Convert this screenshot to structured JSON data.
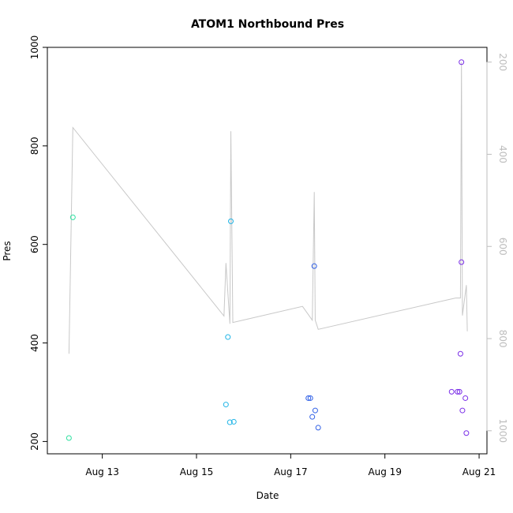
{
  "chart_data": {
    "type": "scatter",
    "title": "ATOM1 Northbound Pres",
    "xlabel": "Date",
    "ylabel": "Pres",
    "x_type": "date",
    "xlim": [
      "2023-08-11T20:00",
      "2023-08-21T04:00"
    ],
    "x_ticks": [
      {
        "label": "Aug 13",
        "value": "2023-08-13T00:00"
      },
      {
        "label": "Aug 15",
        "value": "2023-08-15T00:00"
      },
      {
        "label": "Aug 17",
        "value": "2023-08-17T00:00"
      },
      {
        "label": "Aug 19",
        "value": "2023-08-19T00:00"
      },
      {
        "label": "Aug 21",
        "value": "2023-08-21T00:00"
      }
    ],
    "ylim": [
      175,
      1000
    ],
    "y_ticks": [
      200,
      400,
      600,
      800,
      1000
    ],
    "y2_reversed": true,
    "y2lim": [
      1050,
      168
    ],
    "y2_ticks": [
      200,
      400,
      600,
      800,
      1000
    ],
    "grid": false,
    "line_color": "#c8c8c8",
    "right_axis_color": "#bdbdbd",
    "points": [
      {
        "x": "2023-08-12T07:00",
        "y": 207,
        "color": "#2fe0a0"
      },
      {
        "x": "2023-08-12T09:00",
        "y": 655,
        "color": "#2fe0a0"
      },
      {
        "x": "2023-08-15T15:00",
        "y": 275,
        "color": "#1eb4e6"
      },
      {
        "x": "2023-08-15T16:00",
        "y": 412,
        "color": "#1eb4e6"
      },
      {
        "x": "2023-08-15T17:00",
        "y": 239,
        "color": "#1eb4e6"
      },
      {
        "x": "2023-08-15T17:30",
        "y": 647,
        "color": "#1eb4e6"
      },
      {
        "x": "2023-08-15T19:00",
        "y": 240,
        "color": "#1eb4e6"
      },
      {
        "x": "2023-08-17T09:00",
        "y": 288,
        "color": "#2f5fe6"
      },
      {
        "x": "2023-08-17T10:00",
        "y": 288,
        "color": "#2f5fe6"
      },
      {
        "x": "2023-08-17T11:00",
        "y": 250,
        "color": "#2f5fe6"
      },
      {
        "x": "2023-08-17T12:00",
        "y": 556,
        "color": "#2f5fe6"
      },
      {
        "x": "2023-08-17T12:30",
        "y": 263,
        "color": "#2f5fe6"
      },
      {
        "x": "2023-08-17T14:00",
        "y": 228,
        "color": "#2f5fe6"
      },
      {
        "x": "2023-08-20T10:00",
        "y": 301,
        "color": "#7b2fe8"
      },
      {
        "x": "2023-08-20T13:00",
        "y": 301,
        "color": "#7b2fe8"
      },
      {
        "x": "2023-08-20T14:00",
        "y": 301,
        "color": "#7b2fe8"
      },
      {
        "x": "2023-08-20T14:30",
        "y": 378,
        "color": "#7b2fe8"
      },
      {
        "x": "2023-08-20T15:00",
        "y": 970,
        "color": "#7b2fe8"
      },
      {
        "x": "2023-08-20T15:00",
        "y": 564,
        "color": "#7b2fe8"
      },
      {
        "x": "2023-08-20T15:30",
        "y": 263,
        "color": "#7b2fe8"
      },
      {
        "x": "2023-08-20T17:00",
        "y": 288,
        "color": "#7b2fe8"
      },
      {
        "x": "2023-08-20T17:30",
        "y": 217,
        "color": "#7b2fe8"
      }
    ],
    "line_series": [
      {
        "x": "2023-08-12T07:00",
        "y2": 833
      },
      {
        "x": "2023-08-12T09:00",
        "y2": 342
      },
      {
        "x": "2023-08-15T14:00",
        "y2": 751
      },
      {
        "x": "2023-08-15T15:00",
        "y2": 636
      },
      {
        "x": "2023-08-15T17:00",
        "y2": 768
      },
      {
        "x": "2023-08-15T17:30",
        "y2": 350
      },
      {
        "x": "2023-08-15T18:30",
        "y2": 765
      },
      {
        "x": "2023-08-17T06:00",
        "y2": 730
      },
      {
        "x": "2023-08-17T11:00",
        "y2": 760
      },
      {
        "x": "2023-08-17T12:00",
        "y2": 482
      },
      {
        "x": "2023-08-17T12:30",
        "y2": 760
      },
      {
        "x": "2023-08-17T14:00",
        "y2": 780
      },
      {
        "x": "2023-08-20T12:00",
        "y2": 712
      },
      {
        "x": "2023-08-20T14:30",
        "y2": 712
      },
      {
        "x": "2023-08-20T15:00",
        "y2": 200
      },
      {
        "x": "2023-08-20T15:30",
        "y2": 750
      },
      {
        "x": "2023-08-20T17:30",
        "y2": 684
      },
      {
        "x": "2023-08-20T18:00",
        "y2": 784
      }
    ]
  }
}
